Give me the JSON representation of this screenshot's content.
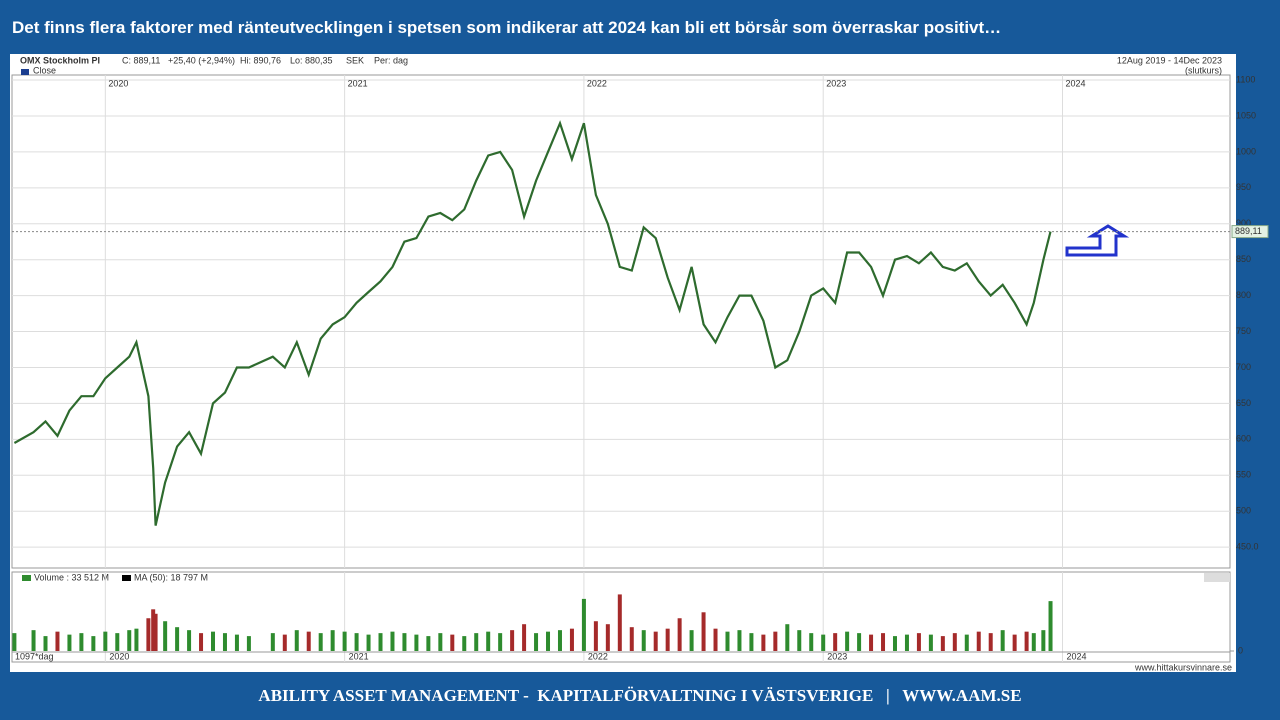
{
  "header": {
    "title": "Det finns flera faktorer med ränteutvecklingen i spetsen som indikerar att 2024 kan bli ett börsår som överraskar positivt…"
  },
  "footer": {
    "text": "ABILITY ASSET MANAGEMENT -  KAPITALFÖRVALTNING I VÄSTSVERIGE   |   WWW.AAM.SE"
  },
  "chart_data": {
    "type": "line",
    "instrument": "OMX Stockholm PI",
    "stats": [
      "C: 889,11",
      "+25,40 (+2,94%)",
      "Hi: 890,76",
      "Lo: 880,35",
      "SEK",
      "Per: dag"
    ],
    "date_range": "12Aug 2019 - 14Dec 2023",
    "price_basis": "(slutkurs)",
    "current_price": {
      "value": 889.11,
      "label": "889,11"
    },
    "x": [
      2019.62,
      2019.7,
      2019.75,
      2019.8,
      2019.85,
      2019.9,
      2019.95,
      2020.0,
      2020.05,
      2020.1,
      2020.13,
      2020.18,
      2020.2,
      2020.21,
      2020.25,
      2020.3,
      2020.35,
      2020.4,
      2020.45,
      2020.5,
      2020.55,
      2020.6,
      2020.7,
      2020.75,
      2020.8,
      2020.85,
      2020.9,
      2020.95,
      2021.0,
      2021.05,
      2021.1,
      2021.15,
      2021.2,
      2021.25,
      2021.3,
      2021.35,
      2021.4,
      2021.45,
      2021.5,
      2021.55,
      2021.6,
      2021.65,
      2021.7,
      2021.75,
      2021.8,
      2021.85,
      2021.9,
      2021.95,
      2022.0,
      2022.05,
      2022.1,
      2022.15,
      2022.2,
      2022.25,
      2022.3,
      2022.35,
      2022.4,
      2022.45,
      2022.5,
      2022.55,
      2022.6,
      2022.65,
      2022.7,
      2022.75,
      2022.8,
      2022.85,
      2022.9,
      2022.95,
      2023.0,
      2023.05,
      2023.1,
      2023.15,
      2023.2,
      2023.25,
      2023.3,
      2023.35,
      2023.4,
      2023.45,
      2023.5,
      2023.55,
      2023.6,
      2023.65,
      2023.7,
      2023.75,
      2023.8,
      2023.85,
      2023.88,
      2023.92,
      2023.95
    ],
    "series": [
      {
        "name": "Close",
        "color": "#2e6b2e",
        "values": [
          595,
          610,
          625,
          605,
          640,
          660,
          660,
          685,
          700,
          715,
          735,
          660,
          560,
          480,
          540,
          590,
          610,
          580,
          650,
          665,
          700,
          700,
          715,
          700,
          735,
          690,
          740,
          760,
          770,
          790,
          805,
          820,
          840,
          875,
          880,
          910,
          915,
          905,
          920,
          960,
          995,
          1000,
          975,
          910,
          960,
          1000,
          1040,
          990,
          1040,
          940,
          900,
          840,
          835,
          895,
          880,
          825,
          780,
          840,
          760,
          735,
          770,
          800,
          800,
          765,
          700,
          710,
          750,
          800,
          810,
          790,
          860,
          860,
          840,
          800,
          850,
          855,
          845,
          860,
          840,
          835,
          845,
          820,
          800,
          815,
          790,
          760,
          790,
          850,
          889.11
        ]
      }
    ],
    "xlim": [
      2019.61,
      2024.7
    ],
    "xticks": [
      2020,
      2021,
      2022,
      2023,
      2024
    ],
    "ylim": [
      421,
      1107
    ],
    "yticks": [
      {
        "value": 450,
        "label": "450.0"
      },
      500,
      550,
      600,
      650,
      700,
      750,
      800,
      850,
      900,
      950,
      1000,
      1050,
      1100
    ],
    "grid": true,
    "volume": {
      "name": "Volume : 33 512 M",
      "ma_label": "MA (50): 18 797 M",
      "up_color": "#2e8b2e",
      "down_color": "#a52a2a",
      "values": [
        12,
        14,
        10,
        13,
        11,
        12,
        10,
        13,
        12,
        14,
        15,
        22,
        28,
        25,
        20,
        16,
        14,
        12,
        13,
        12,
        11,
        10,
        12,
        11,
        14,
        13,
        12,
        14,
        13,
        12,
        11,
        12,
        13,
        12,
        11,
        10,
        12,
        11,
        10,
        12,
        13,
        12,
        14,
        18,
        12,
        13,
        14,
        15,
        35,
        20,
        18,
        38,
        16,
        14,
        13,
        15,
        22,
        14,
        26,
        15,
        13,
        14,
        12,
        11,
        13,
        18,
        14,
        12,
        11,
        12,
        13,
        12,
        11,
        12,
        10,
        11,
        12,
        11,
        10,
        12,
        11,
        13,
        12,
        14,
        11,
        13,
        12,
        14,
        33.5
      ],
      "ylim": [
        0,
        45
      ],
      "yticks": [
        0
      ]
    },
    "period_label": "1097*dag",
    "source": "www.hittakursvinnare.se"
  }
}
